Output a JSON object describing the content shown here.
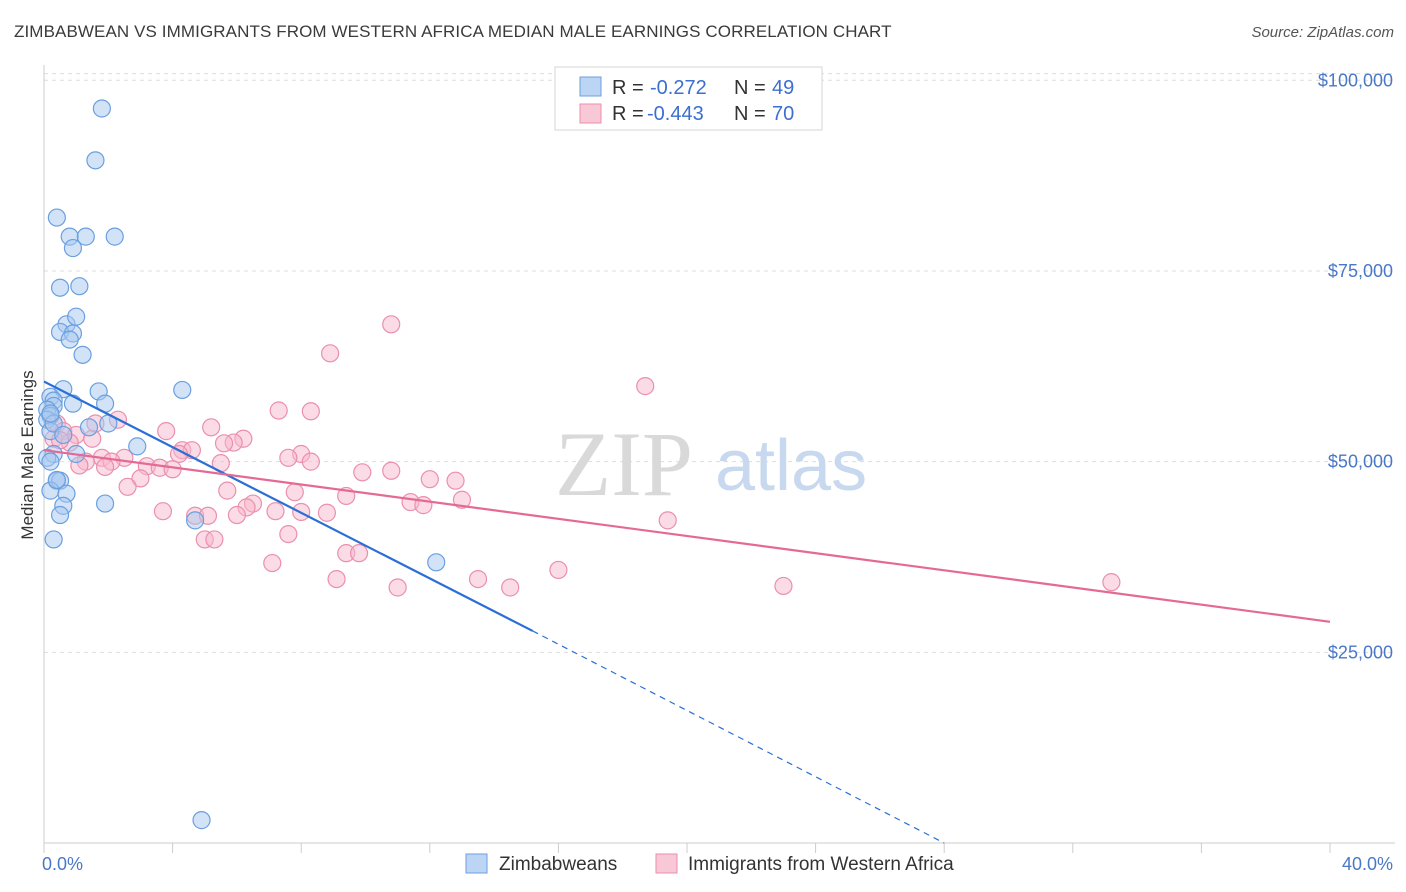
{
  "title": "ZIMBABWEAN VS IMMIGRANTS FROM WESTERN AFRICA MEDIAN MALE EARNINGS CORRELATION CHART",
  "source": "Source: ZipAtlas.com",
  "watermark": {
    "zip": "ZIP",
    "atlas": "atlas"
  },
  "legend": {
    "rows": [
      {
        "r_label": "R =",
        "r_value": "-0.272",
        "n_label": "N =",
        "n_value": "49"
      },
      {
        "r_label": "R =",
        "r_value": "-0.443",
        "n_label": "N =",
        "n_value": "70"
      }
    ]
  },
  "bottom_legend": [
    "Zimbabweans",
    "Immigrants from Western Africa"
  ],
  "colors": {
    "blue_fill": "#a8c8f0",
    "blue_stroke": "#6a9fe0",
    "blue_line": "#2a6fd6",
    "pink_fill": "#f7b8cc",
    "pink_stroke": "#eb8fae",
    "pink_line": "#e46a95",
    "tick": "#4a78c8",
    "grid": "#dddddd"
  },
  "chart_data": {
    "type": "scatter",
    "title": "ZIMBABWEAN VS IMMIGRANTS FROM WESTERN AFRICA MEDIAN MALE EARNINGS CORRELATION CHART",
    "xlabel": "",
    "ylabel": "Median Male Earnings",
    "xlim": [
      0,
      40
    ],
    "ylim": [
      0,
      102000
    ],
    "x_tick_labels": [
      "0.0%",
      "40.0%"
    ],
    "y_ticks": [
      25000,
      50000,
      75000,
      100000
    ],
    "y_tick_labels": [
      "$25,000",
      "$50,000",
      "$75,000",
      "$100,000"
    ],
    "grid": true,
    "legend_position": "top-center",
    "series": [
      {
        "name": "Zimbabweans",
        "r": -0.272,
        "n": 49,
        "points": [
          [
            1.8,
            96300
          ],
          [
            1.6,
            89500
          ],
          [
            0.4,
            82000
          ],
          [
            0.8,
            79500
          ],
          [
            1.3,
            79500
          ],
          [
            2.2,
            79500
          ],
          [
            0.9,
            78000
          ],
          [
            1.1,
            73000
          ],
          [
            0.5,
            72800
          ],
          [
            0.7,
            68000
          ],
          [
            1.0,
            69000
          ],
          [
            0.5,
            67000
          ],
          [
            0.9,
            66800
          ],
          [
            0.8,
            66000
          ],
          [
            1.2,
            64000
          ],
          [
            0.6,
            59500
          ],
          [
            1.7,
            59200
          ],
          [
            4.3,
            59400
          ],
          [
            0.2,
            58500
          ],
          [
            0.3,
            58000
          ],
          [
            1.9,
            57600
          ],
          [
            0.3,
            57300
          ],
          [
            0.1,
            56800
          ],
          [
            0.9,
            57600
          ],
          [
            0.2,
            56000
          ],
          [
            0.1,
            55500
          ],
          [
            1.4,
            54500
          ],
          [
            2.0,
            55000
          ],
          [
            2.9,
            52000
          ],
          [
            0.3,
            51000
          ],
          [
            0.1,
            50500
          ],
          [
            0.2,
            50000
          ],
          [
            0.4,
            47500
          ],
          [
            0.5,
            47500
          ],
          [
            0.2,
            46200
          ],
          [
            0.7,
            45800
          ],
          [
            0.6,
            44200
          ],
          [
            1.9,
            44500
          ],
          [
            0.5,
            43000
          ],
          [
            4.7,
            42300
          ],
          [
            0.3,
            39800
          ],
          [
            12.2,
            36800
          ],
          [
            4.9,
            3000
          ],
          [
            1.0,
            51000
          ],
          [
            0.2,
            54000
          ],
          [
            0.4,
            47600
          ],
          [
            0.3,
            55000
          ],
          [
            0.6,
            53500
          ],
          [
            0.2,
            56300
          ]
        ]
      },
      {
        "name": "Immigrants from Western Africa",
        "r": -0.443,
        "n": 70,
        "points": [
          [
            10.8,
            68000
          ],
          [
            8.9,
            64200
          ],
          [
            18.7,
            59900
          ],
          [
            7.3,
            56700
          ],
          [
            8.3,
            56600
          ],
          [
            2.3,
            55500
          ],
          [
            0.4,
            55000
          ],
          [
            5.2,
            54500
          ],
          [
            0.6,
            54000
          ],
          [
            3.8,
            54000
          ],
          [
            0.3,
            53000
          ],
          [
            1.0,
            53500
          ],
          [
            0.8,
            52500
          ],
          [
            1.5,
            53000
          ],
          [
            6.2,
            53000
          ],
          [
            5.9,
            52500
          ],
          [
            4.3,
            51500
          ],
          [
            4.6,
            51500
          ],
          [
            8.0,
            51000
          ],
          [
            7.6,
            50500
          ],
          [
            1.8,
            50500
          ],
          [
            2.5,
            50500
          ],
          [
            1.3,
            50000
          ],
          [
            2.1,
            50000
          ],
          [
            8.3,
            50000
          ],
          [
            5.5,
            49800
          ],
          [
            1.1,
            49500
          ],
          [
            3.2,
            49400
          ],
          [
            3.6,
            49200
          ],
          [
            1.9,
            49300
          ],
          [
            9.9,
            48600
          ],
          [
            10.8,
            48800
          ],
          [
            12.0,
            47700
          ],
          [
            12.8,
            47500
          ],
          [
            3.0,
            47800
          ],
          [
            2.6,
            46700
          ],
          [
            5.7,
            46200
          ],
          [
            7.8,
            46000
          ],
          [
            9.4,
            45500
          ],
          [
            13.0,
            45000
          ],
          [
            11.4,
            44700
          ],
          [
            11.8,
            44300
          ],
          [
            6.5,
            44500
          ],
          [
            6.3,
            44000
          ],
          [
            7.2,
            43500
          ],
          [
            3.7,
            43500
          ],
          [
            6.0,
            43000
          ],
          [
            8.0,
            43400
          ],
          [
            8.8,
            43300
          ],
          [
            4.7,
            42900
          ],
          [
            5.1,
            42900
          ],
          [
            19.4,
            42300
          ],
          [
            5.0,
            39800
          ],
          [
            5.3,
            39800
          ],
          [
            7.6,
            40500
          ],
          [
            9.4,
            38000
          ],
          [
            9.8,
            38000
          ],
          [
            7.1,
            36700
          ],
          [
            16.0,
            35800
          ],
          [
            13.5,
            34600
          ],
          [
            9.1,
            34600
          ],
          [
            11.0,
            33500
          ],
          [
            14.5,
            33500
          ],
          [
            23.0,
            33700
          ],
          [
            33.2,
            34200
          ],
          [
            0.5,
            52800
          ],
          [
            1.6,
            55000
          ],
          [
            4.2,
            51000
          ],
          [
            5.6,
            52400
          ],
          [
            4.0,
            49000
          ]
        ]
      }
    ],
    "trend_lines": [
      {
        "series": "Zimbabweans",
        "x1": 0,
        "y1": 60500,
        "x2": 15.2,
        "y2": 27800,
        "dashed_to_x": 28,
        "dashed_to_y": 0
      },
      {
        "series": "Immigrants from Western Africa",
        "x1": 0,
        "y1": 51500,
        "x2": 40,
        "y2": 29000
      }
    ]
  }
}
